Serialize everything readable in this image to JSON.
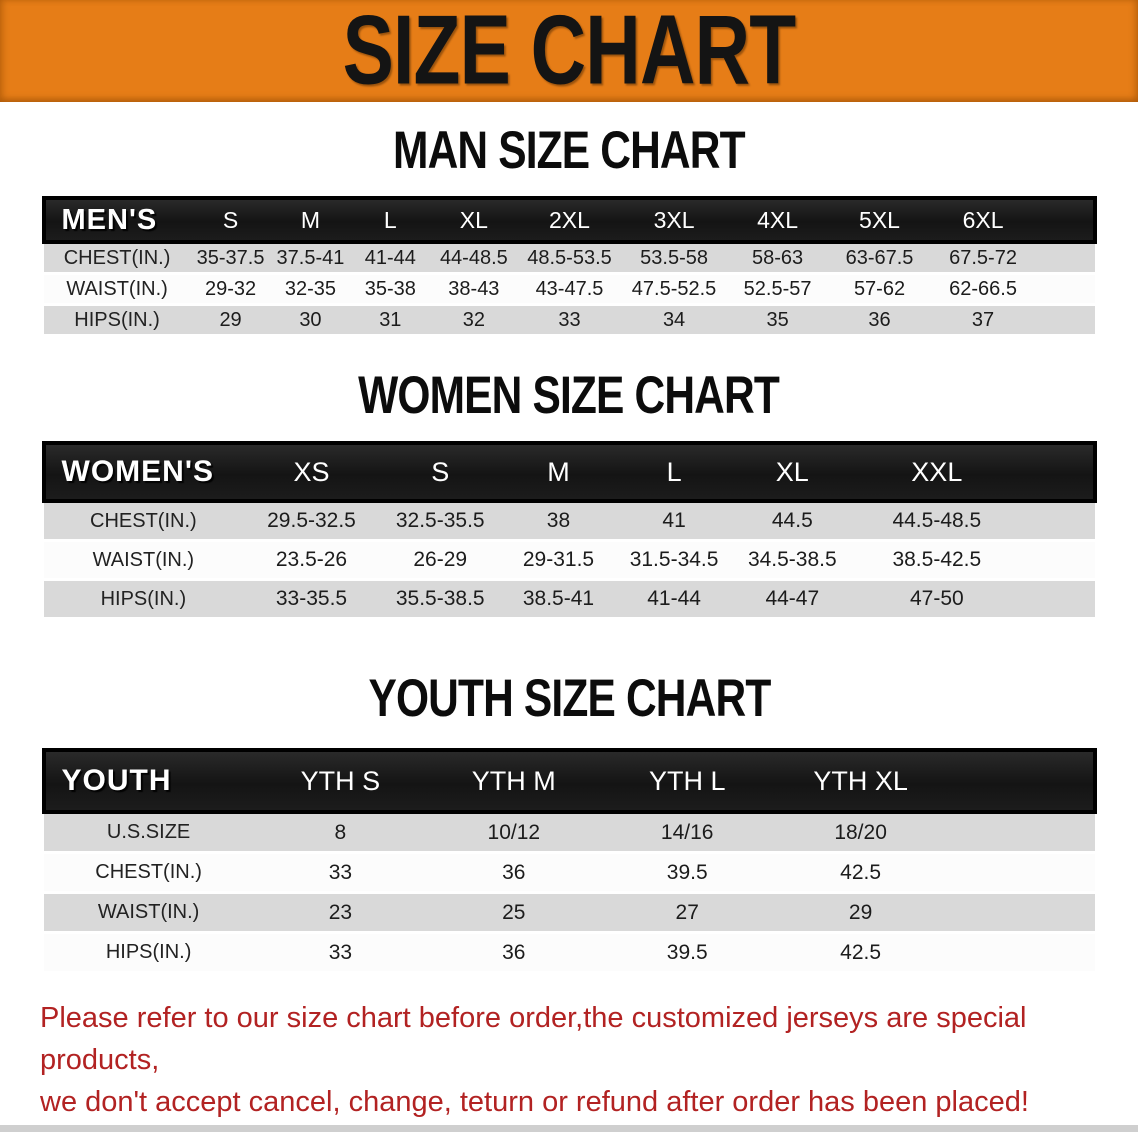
{
  "banner": {
    "title": "SIZE CHART",
    "bg_color": "#e67d17",
    "text_color": "#141414"
  },
  "sections": [
    {
      "id": "men",
      "title": "MAN SIZE CHART",
      "header_label": "MEN'S",
      "columns": [
        "S",
        "M",
        "L",
        "XL",
        "2XL",
        "3XL",
        "4XL",
        "5XL",
        "6XL"
      ],
      "rows": [
        {
          "label": "CHEST(IN.)",
          "values": [
            "35-37.5",
            "37.5-41",
            "41-44",
            "44-48.5",
            "48.5-53.5",
            "53.5-58",
            "58-63",
            "63-67.5",
            "67.5-72"
          ]
        },
        {
          "label": "WAIST(IN.)",
          "values": [
            "29-32",
            "32-35",
            "35-38",
            "38-43",
            "43-47.5",
            "47.5-52.5",
            "52.5-57",
            "57-62",
            "62-66.5"
          ]
        },
        {
          "label": "HIPS(IN.)",
          "values": [
            "29",
            "30",
            "31",
            "32",
            "33",
            "34",
            "35",
            "36",
            "37"
          ]
        }
      ]
    },
    {
      "id": "women",
      "title": "WOMEN SIZE CHART",
      "header_label": "WOMEN'S",
      "columns": [
        "XS",
        "S",
        "M",
        "L",
        "XL",
        "XXL"
      ],
      "rows": [
        {
          "label": "CHEST(IN.)",
          "values": [
            "29.5-32.5",
            "32.5-35.5",
            "38",
            "41",
            "44.5",
            "44.5-48.5"
          ]
        },
        {
          "label": "WAIST(IN.)",
          "values": [
            "23.5-26",
            "26-29",
            "29-31.5",
            "31.5-34.5",
            "34.5-38.5",
            "38.5-42.5"
          ]
        },
        {
          "label": "HIPS(IN.)",
          "values": [
            "33-35.5",
            "35.5-38.5",
            "38.5-41",
            "41-44",
            "44-47",
            "47-50"
          ]
        }
      ]
    },
    {
      "id": "youth",
      "title": "YOUTH SIZE CHART",
      "header_label": "YOUTH",
      "columns": [
        "YTH S",
        "YTH M",
        "YTH L",
        "YTH XL"
      ],
      "rows": [
        {
          "label": "U.S.SIZE",
          "values": [
            "8",
            "10/12",
            "14/16",
            "18/20"
          ]
        },
        {
          "label": "CHEST(IN.)",
          "values": [
            "33",
            "36",
            "39.5",
            "42.5"
          ]
        },
        {
          "label": "WAIST(IN.)",
          "values": [
            "23",
            "25",
            "27",
            "29"
          ]
        },
        {
          "label": "HIPS(IN.)",
          "values": [
            "33",
            "36",
            "39.5",
            "42.5"
          ]
        }
      ]
    }
  ],
  "footer_note": {
    "line1": "Please refer to our size chart before order,the customized jerseys are special products,",
    "line2": "we don't accept cancel, change, teturn or refund after order has been placed!",
    "text_color": "#b22222"
  }
}
